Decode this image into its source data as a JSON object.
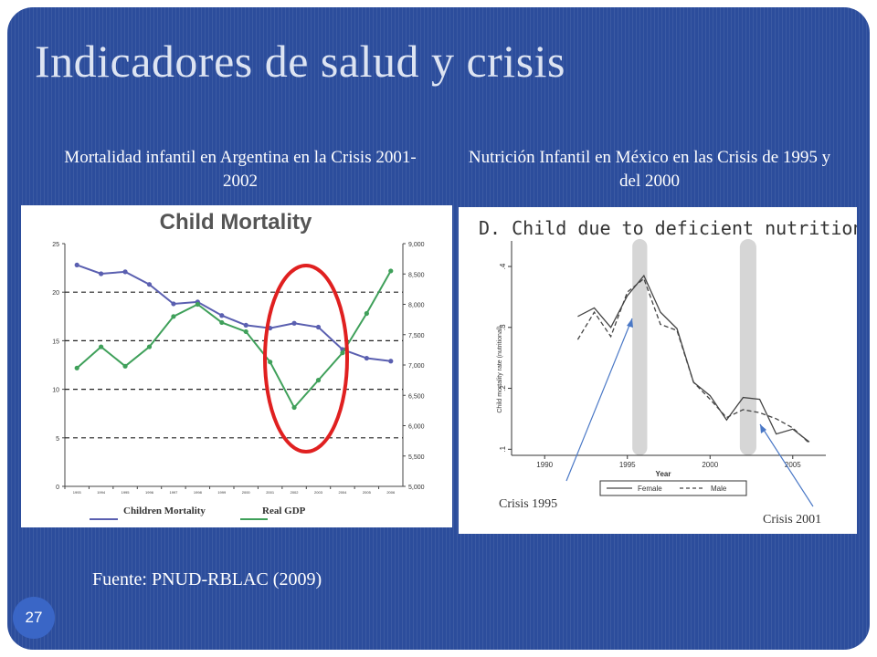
{
  "slide": {
    "title": "Indicadores de salud y crisis",
    "subtitle_left": "Mortalidad infantil en Argentina en la Crisis 2001-2002",
    "subtitle_right": "Nutrición Infantil en México en las Crisis de 1995 y del 2000",
    "source": "Fuente: PNUD-RBLAC (2009)",
    "page_number": "27",
    "background_color": "#2c4d9c"
  },
  "chart_data": [
    {
      "type": "line",
      "title": "Child Mortality",
      "categories": [
        "1993",
        "1994",
        "1995",
        "1996",
        "1997",
        "1998",
        "1999",
        "2000",
        "2001",
        "2002",
        "2003",
        "2004",
        "2005",
        "2006"
      ],
      "series": [
        {
          "name": "Children Mortality",
          "axis": "left",
          "color": "#5a5fb0",
          "values": [
            22.8,
            21.9,
            22.1,
            20.8,
            18.8,
            19.0,
            17.6,
            16.6,
            16.3,
            16.8,
            16.4,
            14.1,
            13.2,
            12.9
          ]
        },
        {
          "name": "Real GDP",
          "axis": "right",
          "color": "#3fa05a",
          "values": [
            6950,
            7300,
            6980,
            7300,
            7800,
            8000,
            7700,
            7550,
            7050,
            6300,
            6750,
            7200,
            7850,
            8550
          ]
        }
      ],
      "ylim_left": [
        0,
        25
      ],
      "yticks_left": [
        "0",
        "5",
        "10",
        "15",
        "20",
        "25"
      ],
      "ylim_right": [
        5000,
        9000
      ],
      "yticks_right": [
        "5,000",
        "5,500",
        "6,000",
        "6,500",
        "7,000",
        "7,500",
        "8,000",
        "8,500",
        "9,000"
      ],
      "grid": "dashed at 5, 10, 15, 20 (left axis)",
      "highlight": "red ellipse around 2001-2003",
      "legend_position": "bottom",
      "highlight_color": "#e02020"
    },
    {
      "type": "line",
      "title": "D. Child due to deficient nutrition",
      "xlabel": "Year",
      "ylabel": "Child mortality rate (nutritional)",
      "xlim": [
        1988,
        2007
      ],
      "xticks": [
        "1990",
        "1995",
        "2000",
        "2005"
      ],
      "ylim": [
        0.09,
        0.43
      ],
      "yticks": [
        ".1",
        ".2",
        ".3",
        ".4"
      ],
      "series": [
        {
          "name": "Female",
          "style": "solid",
          "x": [
            1992,
            1993,
            1994,
            1995,
            1996,
            1997,
            1998,
            1999,
            2000,
            2001,
            2002,
            2003,
            2004,
            2005,
            2006
          ],
          "y": [
            0.318,
            0.332,
            0.3,
            0.352,
            0.385,
            0.325,
            0.298,
            0.21,
            0.188,
            0.148,
            0.185,
            0.182,
            0.125,
            0.133,
            0.112
          ]
        },
        {
          "name": "Male",
          "style": "dashed",
          "x": [
            1992,
            1993,
            1994,
            1995,
            1996,
            1997,
            1998,
            1999,
            2000,
            2001,
            2002,
            2003,
            2004,
            2005,
            2006
          ],
          "y": [
            0.28,
            0.325,
            0.285,
            0.358,
            0.38,
            0.305,
            0.295,
            0.21,
            0.182,
            0.152,
            0.165,
            0.16,
            0.15,
            0.135,
            0.11
          ]
        }
      ],
      "shaded_bands": [
        [
          1995.3,
          1996.2
        ],
        [
          2001.8,
          2002.8
        ]
      ],
      "legend_position": "bottom",
      "annotations": [
        "Crisis 1995",
        "Crisis 2001"
      ],
      "annotation_color": "#4a78c6"
    }
  ]
}
